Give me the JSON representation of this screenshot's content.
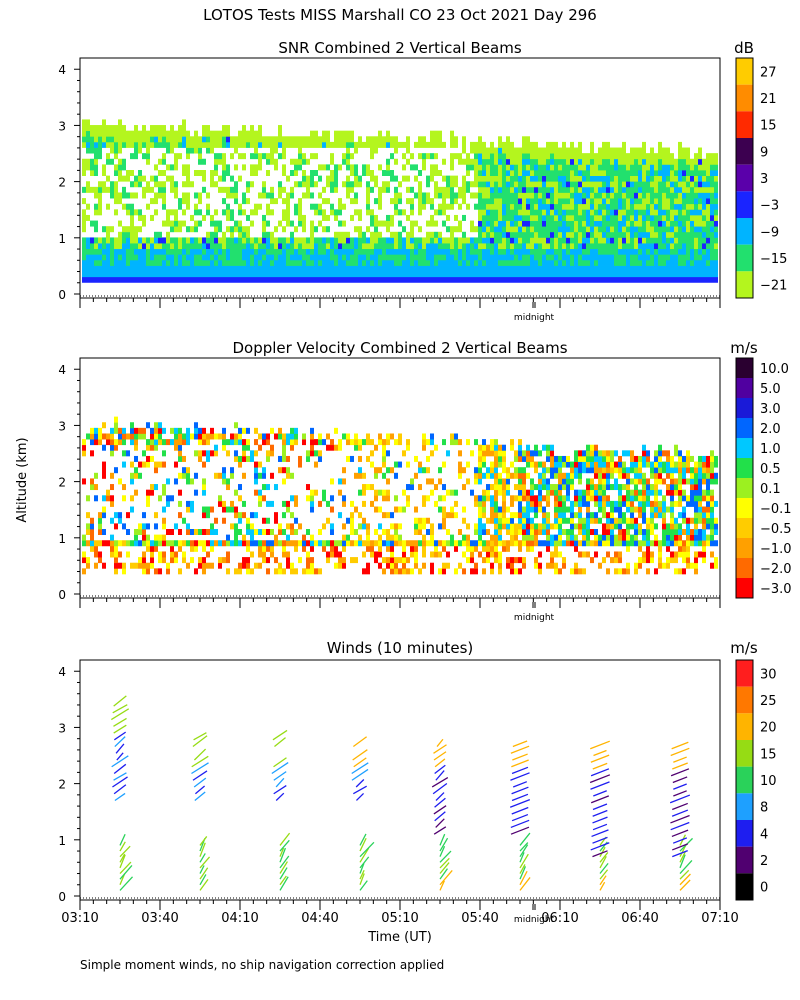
{
  "figure": {
    "title": "LOTOS Tests MISS Marshall CO  23 Oct 2021 Day 296",
    "ylabel": "Altitude (km)",
    "xlabel": "Time (UT)",
    "midnight_label": "midnight",
    "footnote": "Simple moment winds, no ship navigation correction applied",
    "x_ticks": [
      "03:10",
      "03:40",
      "04:10",
      "04:40",
      "05:10",
      "05:40",
      "06:10",
      "06:40",
      "07:10"
    ],
    "y_ticks": [
      "0",
      "1",
      "2",
      "3",
      "4"
    ]
  },
  "chart_data": [
    {
      "type": "heatmap",
      "title": "SNR Combined 2 Vertical Beams",
      "xlabel": "Time (UT)",
      "ylabel": "Altitude (km)",
      "xlim": [
        "03:10",
        "07:10"
      ],
      "ylim": [
        0,
        4
      ],
      "colorbar": {
        "unit": "dB",
        "labels": [
          "27",
          "21",
          "15",
          "9",
          "3",
          "−3",
          "−9",
          "−15",
          "−21"
        ],
        "colors": [
          "#ffcc00",
          "#ff8c00",
          "#ff2a00",
          "#3c0050",
          "#5a00aa",
          "#1a24ff",
          "#00b4ff",
          "#22e06e",
          "#b4f51e"
        ]
      },
      "description_values": {
        "echo_top_km_early": 3.0,
        "echo_top_km_late": 2.5,
        "strong_layer_km": [
          0.25,
          0.45
        ]
      }
    },
    {
      "type": "heatmap",
      "title": "Doppler Velocity Combined 2 Vertical Beams",
      "xlabel": "Time (UT)",
      "ylabel": "Altitude (km)",
      "xlim": [
        "03:10",
        "07:10"
      ],
      "ylim": [
        0,
        4
      ],
      "colorbar": {
        "unit": "m/s",
        "labels": [
          "10.0",
          "5.0",
          "3.0",
          "2.0",
          "1.0",
          "0.5",
          "0.1",
          "−0.1",
          "−0.5",
          "−1.0",
          "−2.0",
          "−3.0"
        ],
        "colors": [
          "#2a0030",
          "#5000a0",
          "#1a1ad8",
          "#0066ff",
          "#00c8ff",
          "#22e04a",
          "#9cf020",
          "#ffff00",
          "#ffcc00",
          "#ffa000",
          "#ff6a00",
          "#ff0000"
        ]
      }
    },
    {
      "type": "scatter",
      "title": "Winds (10 minutes)",
      "xlabel": "Time (UT)",
      "ylabel": "Altitude (km)",
      "xlim": [
        "03:10",
        "07:10"
      ],
      "ylim": [
        0,
        4
      ],
      "colorbar": {
        "unit": "m/s",
        "labels": [
          "30",
          "25",
          "20",
          "15",
          "10",
          "8",
          "4",
          "2",
          "0"
        ],
        "colors": [
          "#ff1e1e",
          "#ff7800",
          "#ffb400",
          "#96dc14",
          "#2ad25a",
          "#1ea0ff",
          "#1e1ef0",
          "#500070",
          "#000000"
        ]
      },
      "profile_times": [
        "03:25",
        "03:55",
        "04:25",
        "04:55",
        "05:25",
        "05:55",
        "06:25",
        "06:55"
      ]
    }
  ]
}
